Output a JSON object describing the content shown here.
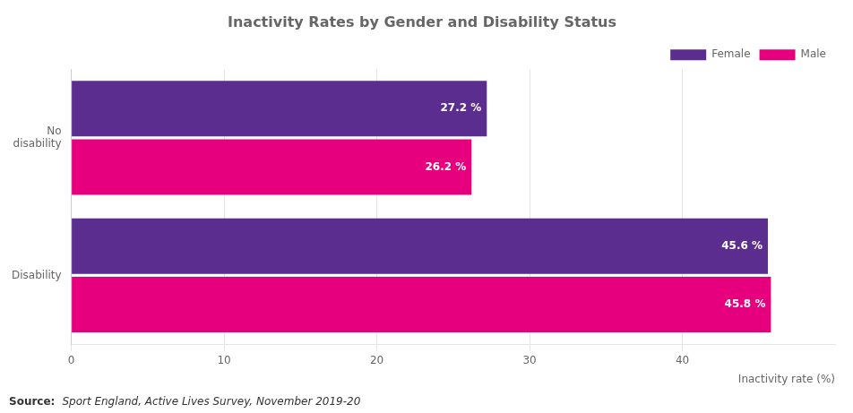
{
  "chart_data": {
    "type": "bar",
    "orientation": "horizontal",
    "title": "Inactivity Rates by Gender and Disability Status",
    "categories": [
      "Disability",
      "No\ndisability"
    ],
    "series": [
      {
        "name": "Female",
        "color": "#5b2d8e",
        "values": [
          45.6,
          27.2
        ],
        "value_labels": [
          "45.6 %",
          "27.2 %"
        ]
      },
      {
        "name": "Male",
        "color": "#e6007e",
        "values": [
          45.8,
          26.2
        ],
        "value_labels": [
          "45.8 %",
          "26.2 %"
        ]
      }
    ],
    "xlabel": "Inactivity rate (%)",
    "xlim": [
      0,
      50
    ],
    "xticks": [
      0,
      10,
      20,
      30,
      40
    ],
    "grid": true,
    "legend": "upper right",
    "data_labels": true,
    "source": [
      "Source:",
      "Sport England, Active Lives Survey, November 2019-20"
    ]
  }
}
